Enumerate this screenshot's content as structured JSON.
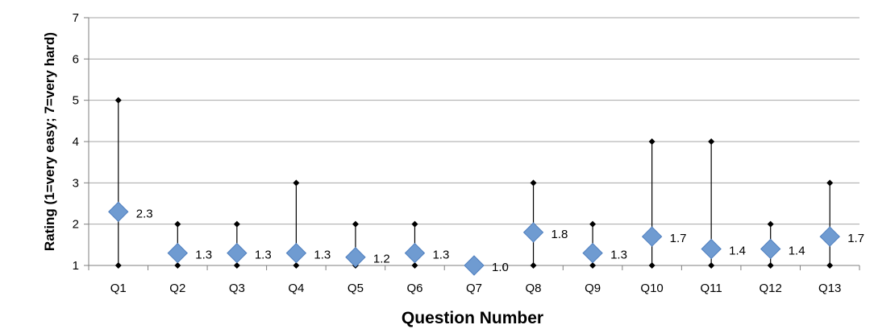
{
  "chart_data": {
    "type": "scatter",
    "xlabel": "Question Number",
    "ylabel": "Rating (1=very easy; 7=very hard)",
    "ylim": [
      1,
      7
    ],
    "yticks": [
      "1",
      "2",
      "3",
      "4",
      "5",
      "6",
      "7"
    ],
    "grid": true,
    "categories": [
      "Q1",
      "Q2",
      "Q3",
      "Q4",
      "Q5",
      "Q6",
      "Q7",
      "Q8",
      "Q9",
      "Q10",
      "Q11",
      "Q12",
      "Q13"
    ],
    "mean": [
      2.3,
      1.3,
      1.3,
      1.3,
      1.2,
      1.3,
      1.0,
      1.8,
      1.3,
      1.7,
      1.4,
      1.4,
      1.7
    ],
    "mean_labels": [
      "2.3",
      "1.3",
      "1.3",
      "1.3",
      "1.2",
      "1.3",
      "1.0",
      "1.8",
      "1.3",
      "1.7",
      "1.4",
      "1.4",
      "1.7"
    ],
    "min": [
      1,
      1,
      1,
      1,
      1,
      1,
      1,
      1,
      1,
      1,
      1,
      1,
      1
    ],
    "max": [
      5,
      2,
      2,
      3,
      2,
      2,
      1,
      3,
      2,
      4,
      4,
      2,
      3
    ],
    "colors": {
      "marker": "#6f9bd1",
      "marker_edge": "#4f7fbf",
      "range": "#000000",
      "grid": "#a6a6a6"
    }
  }
}
